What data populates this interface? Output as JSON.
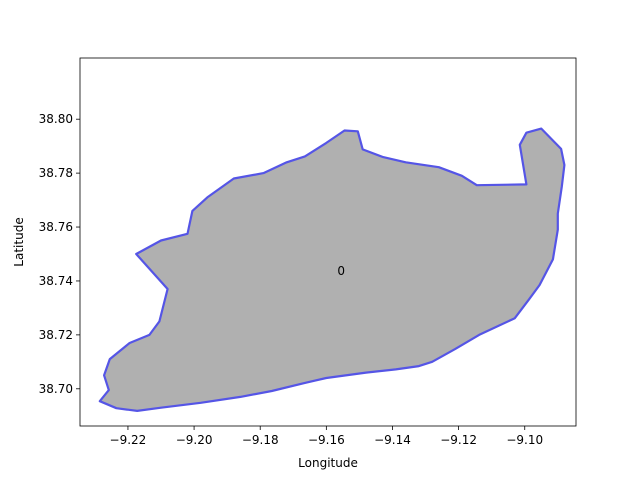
{
  "chart_data": {
    "type": "map",
    "xlabel": "Longitude",
    "ylabel": "Latitude",
    "xlim": [
      -9.2345,
      -9.0845
    ],
    "ylim": [
      38.6862,
      38.8227
    ],
    "x_ticks": [
      -9.22,
      -9.2,
      -9.18,
      -9.16,
      -9.14,
      -9.12,
      -9.1
    ],
    "x_tick_labels": [
      "−9.22",
      "−9.20",
      "−9.18",
      "−9.16",
      "−9.14",
      "−9.12",
      "−9.10"
    ],
    "y_ticks": [
      38.7,
      38.72,
      38.74,
      38.76,
      38.78,
      38.8
    ],
    "y_tick_labels": [
      "38.70",
      "38.72",
      "38.74",
      "38.76",
      "38.78",
      "38.80"
    ],
    "grid": false,
    "fill_color": "#b0b0b0",
    "edge_color": "#5555e6",
    "region": {
      "label": "0",
      "label_position": [
        -9.1555,
        38.7437
      ],
      "boundary": [
        [
          -9.2285,
          38.6954
        ],
        [
          -9.2235,
          38.6928
        ],
        [
          -9.2172,
          38.6918
        ],
        [
          -9.21,
          38.693
        ],
        [
          -9.198,
          38.6948
        ],
        [
          -9.186,
          38.697
        ],
        [
          -9.1765,
          38.6992
        ],
        [
          -9.1665,
          38.7022
        ],
        [
          -9.16,
          38.704
        ],
        [
          -9.148,
          38.706
        ],
        [
          -9.139,
          38.7072
        ],
        [
          -9.132,
          38.7084
        ],
        [
          -9.128,
          38.71
        ],
        [
          -9.121,
          38.7148
        ],
        [
          -9.1138,
          38.72
        ],
        [
          -9.103,
          38.7262
        ],
        [
          -9.0988,
          38.733
        ],
        [
          -9.0955,
          38.7385
        ],
        [
          -9.0915,
          38.748
        ],
        [
          -9.09,
          38.759
        ],
        [
          -9.09,
          38.765
        ],
        [
          -9.0888,
          38.775
        ],
        [
          -9.088,
          38.783
        ],
        [
          -9.089,
          38.789
        ],
        [
          -9.095,
          38.7965
        ],
        [
          -9.0995,
          38.795
        ],
        [
          -9.1015,
          38.7905
        ],
        [
          -9.0995,
          38.7758
        ],
        [
          -9.1145,
          38.7755
        ],
        [
          -9.119,
          38.779
        ],
        [
          -9.126,
          38.7822
        ],
        [
          -9.136,
          38.784
        ],
        [
          -9.143,
          38.786
        ],
        [
          -9.149,
          38.7888
        ],
        [
          -9.1505,
          38.7955
        ],
        [
          -9.1545,
          38.7958
        ],
        [
          -9.16,
          38.7912
        ],
        [
          -9.1665,
          38.7862
        ],
        [
          -9.172,
          38.784
        ],
        [
          -9.179,
          38.78
        ],
        [
          -9.188,
          38.778
        ],
        [
          -9.196,
          38.771
        ],
        [
          -9.2005,
          38.766
        ],
        [
          -9.202,
          38.7575
        ],
        [
          -9.21,
          38.755
        ],
        [
          -9.2175,
          38.75
        ],
        [
          -9.208,
          38.737
        ],
        [
          -9.2105,
          38.725
        ],
        [
          -9.2135,
          38.72
        ],
        [
          -9.2195,
          38.717
        ],
        [
          -9.2255,
          38.711
        ],
        [
          -9.2272,
          38.705
        ],
        [
          -9.2258,
          38.6995
        ],
        [
          -9.2285,
          38.6954
        ]
      ]
    }
  }
}
